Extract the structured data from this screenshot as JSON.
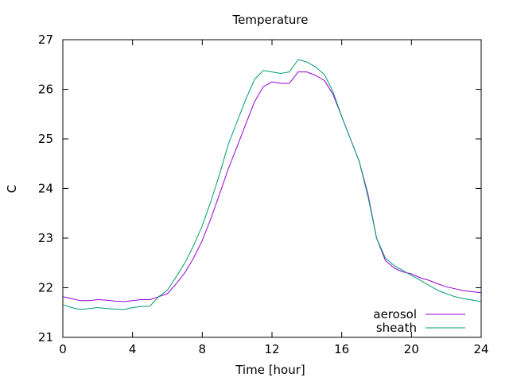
{
  "chart_data": {
    "type": "line",
    "title": "Temperature",
    "xlabel": "Time [hour]",
    "ylabel": "C",
    "xlim": [
      0,
      24
    ],
    "ylim": [
      21,
      27
    ],
    "xticks": [
      0,
      4,
      8,
      12,
      16,
      20,
      24
    ],
    "yticks": [
      21,
      22,
      23,
      24,
      25,
      26,
      27
    ],
    "grid": false,
    "legend_position": "bottom-right",
    "series": [
      {
        "name": "aerosol",
        "color": "#9400d3",
        "x": [
          0,
          0.5,
          1,
          1.5,
          2,
          2.5,
          3,
          3.5,
          4,
          4.5,
          5,
          5.5,
          6,
          6.5,
          7,
          7.5,
          8,
          8.5,
          9,
          9.5,
          10,
          10.5,
          11,
          11.5,
          12,
          12.5,
          13,
          13.5,
          14,
          14.5,
          15,
          15.5,
          16,
          16.5,
          17,
          17.5,
          18,
          18.5,
          19,
          19.5,
          20,
          20.5,
          21,
          21.5,
          22,
          22.5,
          23,
          23.5,
          24
        ],
        "y": [
          21.82,
          21.78,
          21.74,
          21.74,
          21.76,
          21.75,
          21.73,
          21.72,
          21.74,
          21.76,
          21.76,
          21.82,
          21.88,
          22.08,
          22.3,
          22.6,
          22.95,
          23.4,
          23.9,
          24.4,
          24.85,
          25.3,
          25.75,
          26.05,
          26.15,
          26.12,
          26.12,
          26.35,
          26.35,
          26.28,
          26.18,
          25.9,
          25.45,
          25.0,
          24.55,
          23.9,
          23.0,
          22.55,
          22.4,
          22.32,
          22.28,
          22.2,
          22.15,
          22.08,
          22.02,
          21.98,
          21.94,
          21.92,
          21.9
        ]
      },
      {
        "name": "sheath",
        "color": "#009e73",
        "x": [
          0,
          0.5,
          1,
          1.5,
          2,
          2.5,
          3,
          3.5,
          4,
          4.5,
          5,
          5.5,
          6,
          6.5,
          7,
          7.5,
          8,
          8.5,
          9,
          9.5,
          10,
          10.5,
          11,
          11.5,
          12,
          12.5,
          13,
          13.5,
          14,
          14.5,
          15,
          15.5,
          16,
          16.5,
          17,
          17.5,
          18,
          18.5,
          19,
          19.5,
          20,
          20.5,
          21,
          21.5,
          22,
          22.5,
          23,
          23.5,
          24
        ],
        "y": [
          21.66,
          21.6,
          21.56,
          21.58,
          21.6,
          21.58,
          21.57,
          21.56,
          21.6,
          21.62,
          21.63,
          21.82,
          21.95,
          22.22,
          22.5,
          22.85,
          23.25,
          23.75,
          24.3,
          24.9,
          25.35,
          25.8,
          26.2,
          26.38,
          26.35,
          26.32,
          26.35,
          26.6,
          26.55,
          26.45,
          26.3,
          25.95,
          25.45,
          25.0,
          24.55,
          23.85,
          23.0,
          22.6,
          22.45,
          22.35,
          22.25,
          22.15,
          22.05,
          21.95,
          21.88,
          21.82,
          21.78,
          21.75,
          21.72
        ]
      }
    ]
  }
}
